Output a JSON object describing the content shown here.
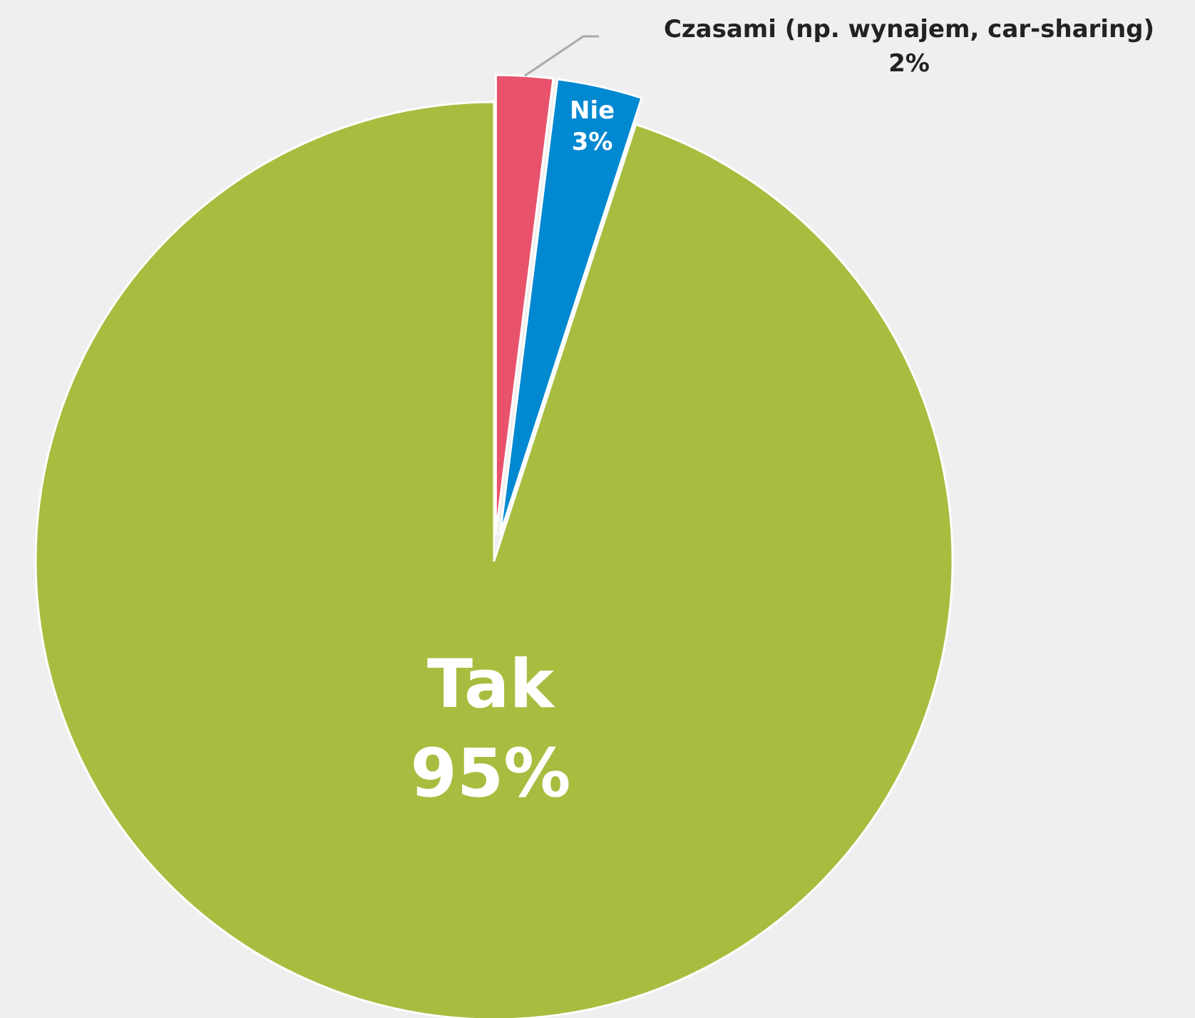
{
  "chart_data": {
    "type": "pie",
    "start": "top",
    "direction": "counterclockwise",
    "slices": [
      {
        "label": "Tak",
        "value": 95,
        "value_label": "95%",
        "color": "#a8bd40",
        "label_position": "inside"
      },
      {
        "label": "Nie",
        "value": 3,
        "value_label": "3%",
        "color": "#0088d1",
        "label_position": "inside",
        "explode": true
      },
      {
        "label": "Czasami (np. wynajem, car-sharing)",
        "value": 2,
        "value_label": "2%",
        "color": "#e8526b",
        "label_position": "outside-callout",
        "explode": true
      }
    ],
    "background": "#efefef",
    "separator_color": "#ffffff",
    "leader_line_color": "#a9a9a9"
  }
}
